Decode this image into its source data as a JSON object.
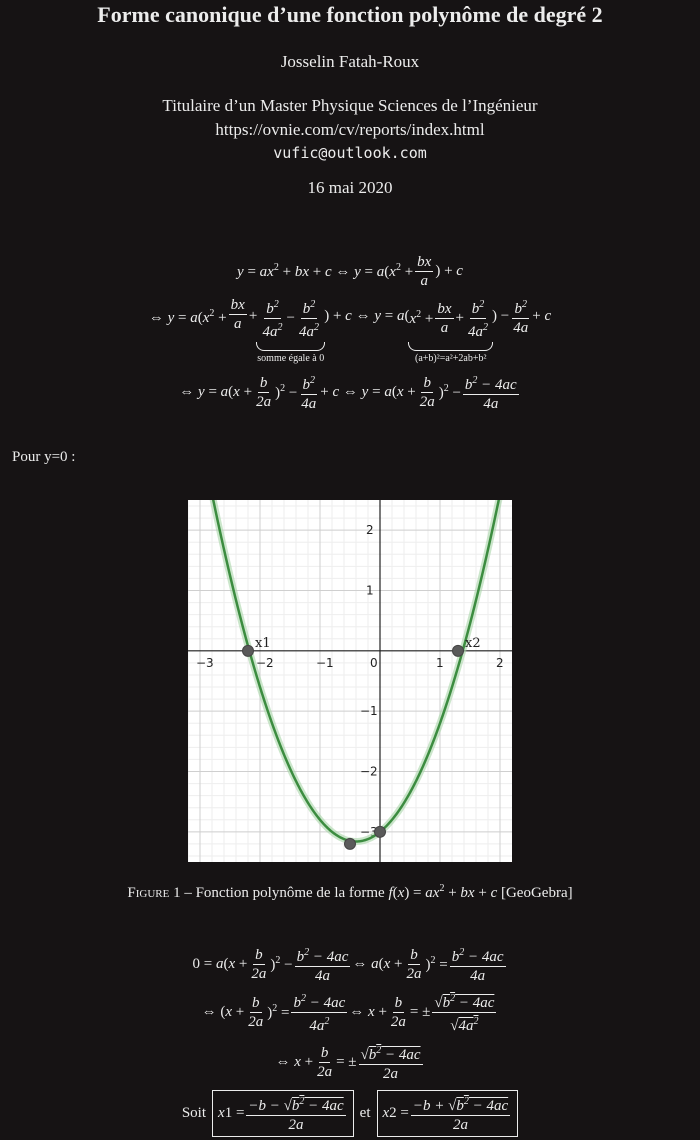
{
  "header": {
    "title": "Forme canonique d’une fonction polynôme de degré 2",
    "author": "Josselin Fatah-Roux",
    "affiliation": "Titulaire d’un Master Physique Sciences de l’Ingénieur",
    "url": "https://ovnie.com/cv/reports/index.html",
    "email": "vufic@outlook.com",
    "date": "16 mai 2020"
  },
  "equations": {
    "brace_note_1": "somme égale à 0",
    "brace_note_2": "(a+b)²=a²+2ab+b²",
    "soit": "Soit",
    "et": "et"
  },
  "text": {
    "pour_y0": "Pour y=0 :",
    "figure_label": "Figure 1",
    "figure_caption": "– Fonction polynôme de la forme",
    "figure_source": "[GeoGebra]"
  },
  "chart_data": {
    "type": "line",
    "title": "",
    "xlim": [
      -3.2,
      2.2
    ],
    "ylim": [
      -3.5,
      2.5
    ],
    "xticks": [
      -3,
      -2,
      -1,
      0,
      1,
      2
    ],
    "yticks": [
      -3,
      -2,
      -1,
      1,
      2
    ],
    "grid": true,
    "series": [
      {
        "expression": "x^2 + 0.8x - 3",
        "color": "#3c8c40"
      }
    ],
    "points": [
      {
        "label": "x1",
        "x": -2.2,
        "y": 0
      },
      {
        "label": "x2",
        "x": 1.3,
        "y": 0
      },
      {
        "label": "",
        "x": -0.5,
        "y": -3.2
      },
      {
        "label": "",
        "x": 0,
        "y": -3
      }
    ]
  }
}
